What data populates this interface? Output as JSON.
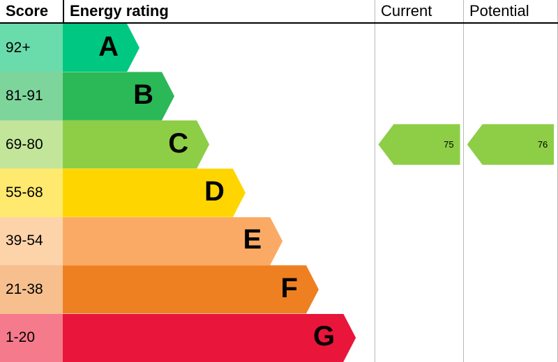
{
  "header": {
    "score": "Score",
    "energy_rating": "Energy rating",
    "current": "Current",
    "potential": "Potential"
  },
  "chart_data": {
    "type": "bar",
    "title": "Energy rating",
    "description": "EPC energy efficiency rating chart with score bands A-G",
    "bands": [
      {
        "score": "92+",
        "letter": "A",
        "bar_color": "#00c781",
        "score_color": "#6adbab",
        "bar_width_pct": 24.6
      },
      {
        "score": "81-91",
        "letter": "B",
        "bar_color": "#2bb857",
        "score_color": "#7ed59b",
        "bar_width_pct": 35.8
      },
      {
        "score": "69-80",
        "letter": "C",
        "bar_color": "#8dce46",
        "score_color": "#c2e59a",
        "bar_width_pct": 47.0
      },
      {
        "score": "55-68",
        "letter": "D",
        "bar_color": "#ffd500",
        "score_color": "#ffe96e",
        "bar_width_pct": 58.6
      },
      {
        "score": "39-54",
        "letter": "E",
        "bar_color": "#fbaa65",
        "score_color": "#fdd3a9",
        "bar_width_pct": 70.5
      },
      {
        "score": "21-38",
        "letter": "F",
        "bar_color": "#ee8022",
        "score_color": "#f6bf8d",
        "bar_width_pct": 82.1
      },
      {
        "score": "1-20",
        "letter": "G",
        "bar_color": "#e9153b",
        "score_color": "#f47a8c",
        "bar_width_pct": 94.0
      }
    ],
    "current": {
      "value": 75,
      "band_letter": "C",
      "arrow_color": "#8dce46"
    },
    "potential": {
      "value": 76,
      "band_letter": "C",
      "arrow_color": "#8dce46"
    }
  }
}
